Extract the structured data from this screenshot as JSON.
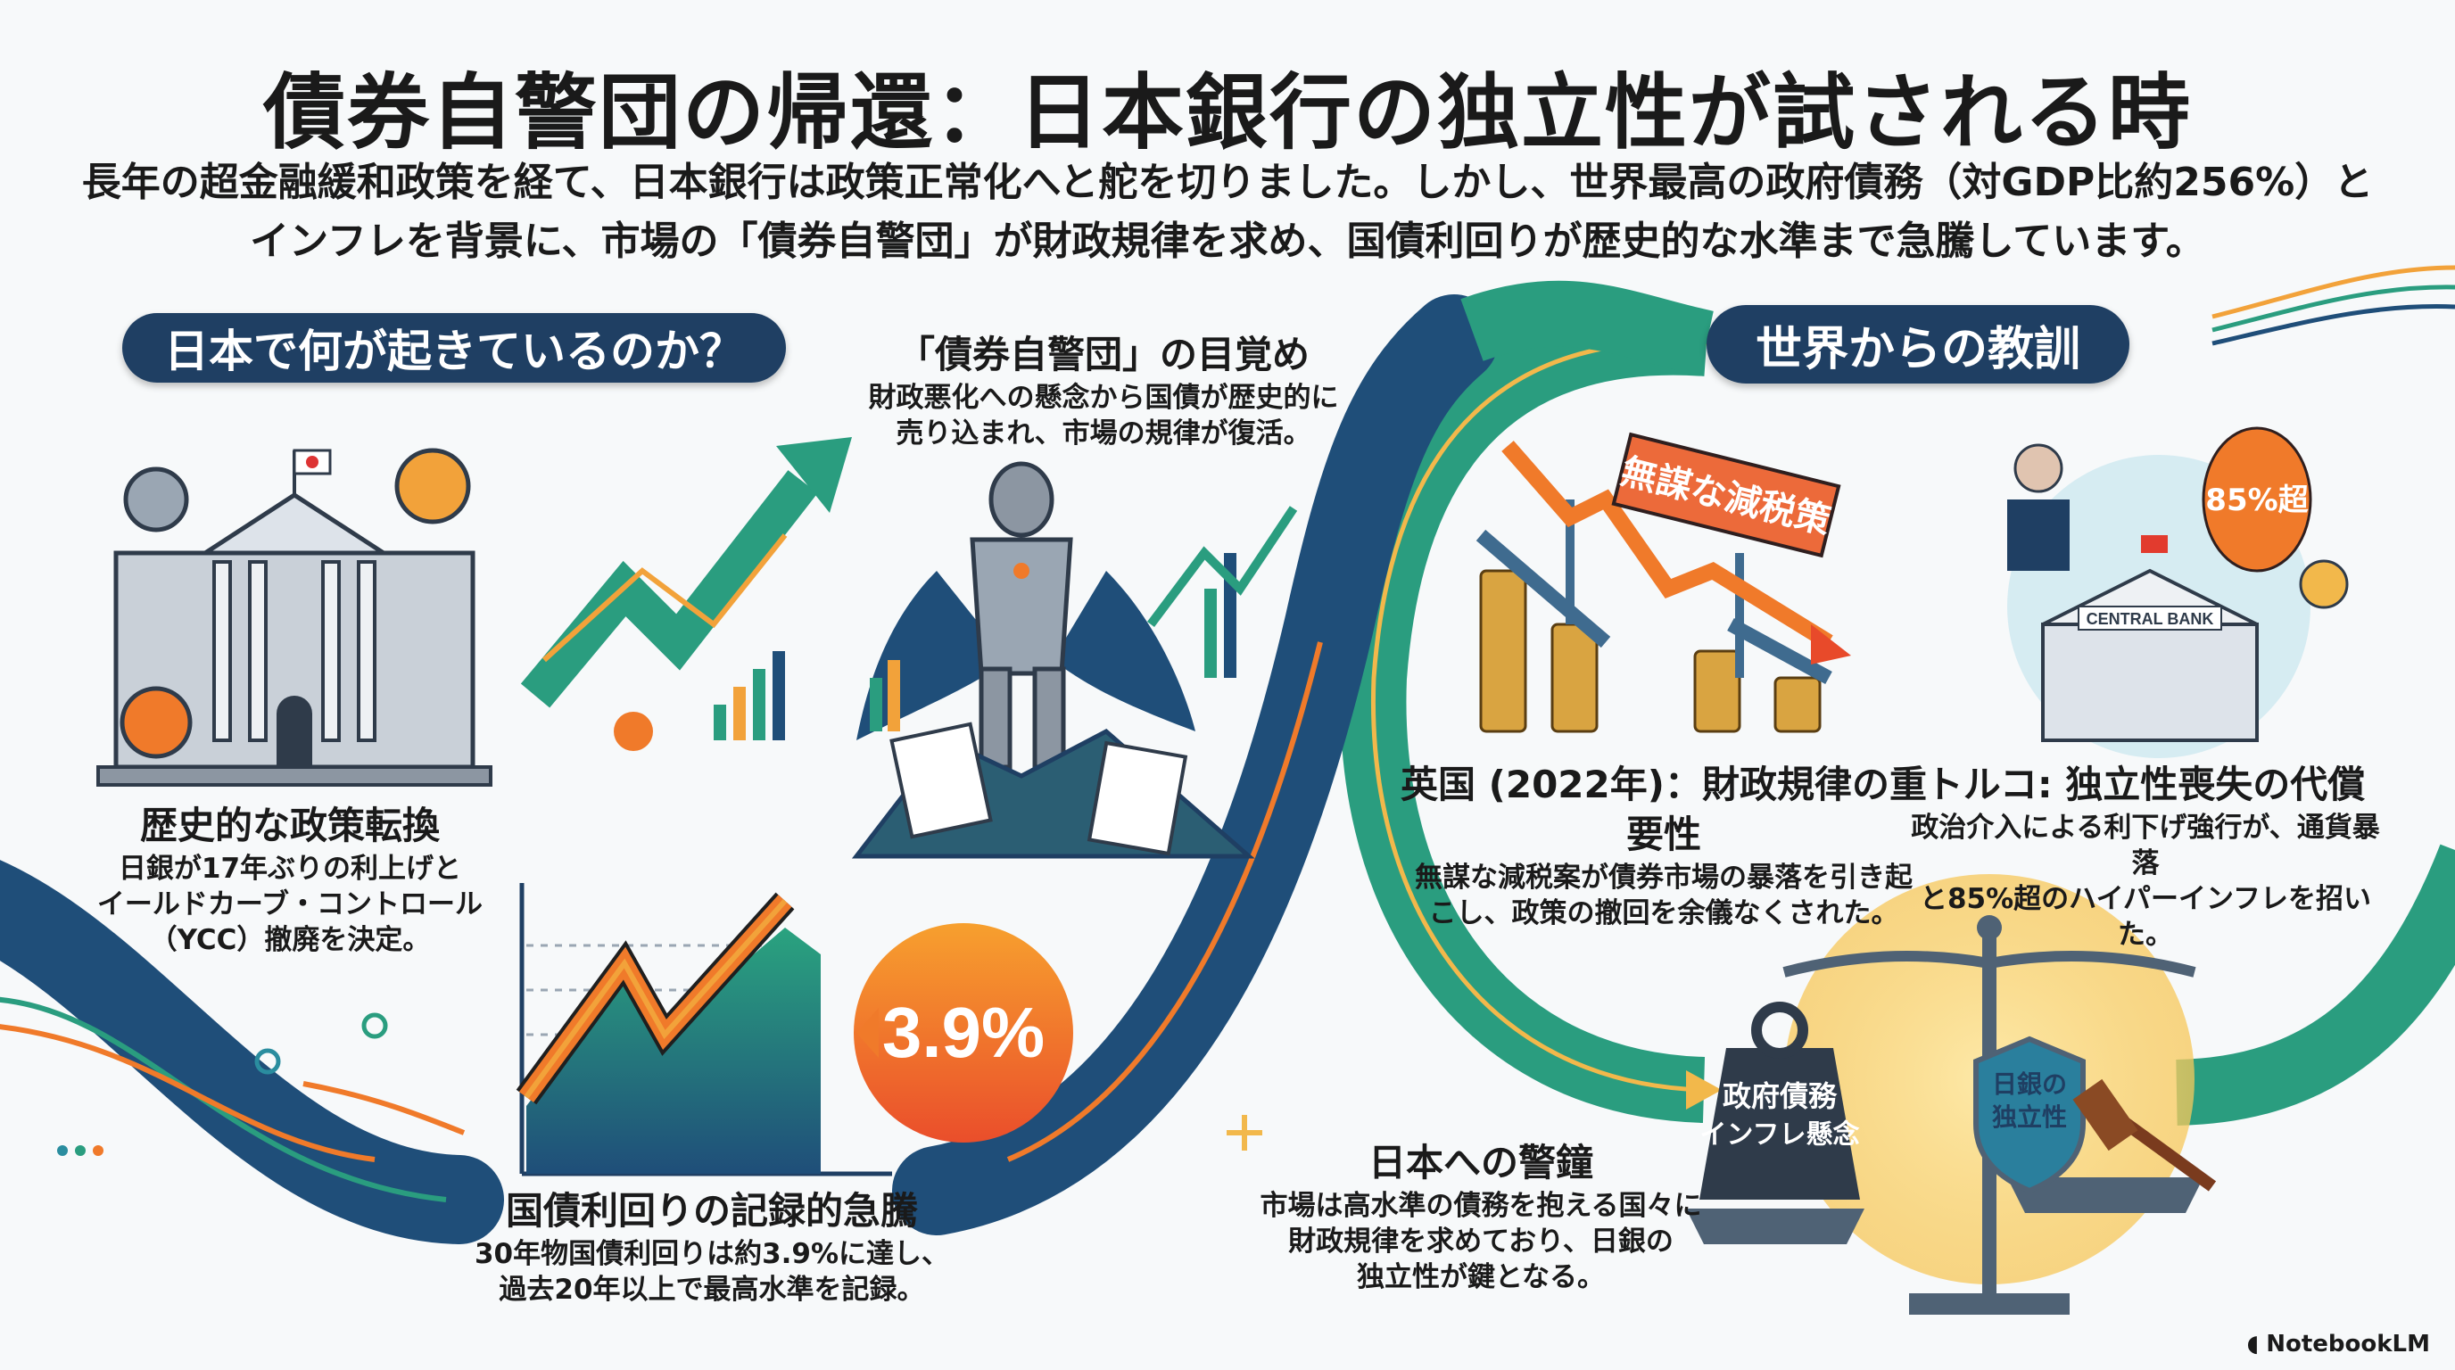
{
  "header": {
    "title": "債券自警団の帰還：日本銀行の独立性が試される時",
    "subtitle_lines": [
      "長年の超金融緩和政策を経て、日本銀行は政策正常化へと舵を切りました。しかし、世界最高の政府債務（対GDP比約256%）と",
      "インフレを背景に、市場の「債券自警団」が財政規律を求め、国債利回りが歴史的な水準まで急騰しています。"
    ]
  },
  "sections": {
    "japan_pill": "日本で何が起きているのか？",
    "world_pill": "世界からの教訓"
  },
  "japan": {
    "policy_shift": {
      "heading": "歴史的な政策転換",
      "body": [
        "日銀が17年ぶりの利上げと",
        "イールドカーブ・コントロール",
        "（YCC）撤廃を決定。"
      ]
    },
    "vigilantes": {
      "heading": "「債券自警団」の目覚め",
      "body": [
        "財政悪化への懸念から国債が歴史的に",
        "売り込まれ、市場の規律が復活。"
      ]
    },
    "yield_surge": {
      "heading": "国債利回りの記録的急騰",
      "body": [
        "30年物国債利回りは約3.9%に達し、",
        "過去20年以上で最高水準を記録。"
      ],
      "badge": "3.9%"
    }
  },
  "world": {
    "uk": {
      "heading": "英国 (2022年)：財政規律の重要性",
      "body": [
        "無謀な減税案が債券市場の暴落を引き起",
        "こし、政策の撤回を余儀なくされた。"
      ],
      "banner": "無謀な減税策"
    },
    "turkey": {
      "heading": "トルコ: 独立性喪失の代償",
      "body": [
        "政治介入による利下げ強行が、通貨暴落",
        "と85%超のハイパーインフレを招いた。"
      ],
      "balloon": "85%超",
      "building_sign": "CENTRAL BANK"
    },
    "warning": {
      "heading": "日本への警鐘",
      "body": [
        "市場は高水準の債務を抱える国々に",
        "財政規律を求めており、日銀の",
        "独立性が鍵となる。"
      ],
      "weight_label": [
        "政府債務",
        "インフレ懸念"
      ],
      "shield_label": [
        "日銀の",
        "独立性"
      ]
    }
  },
  "footer": {
    "brand": "NotebookLM"
  },
  "colors": {
    "navy": "#1f4e79",
    "green": "#2a9d7f",
    "orange": "#f07a2a",
    "gold": "#f2b84b",
    "pill": "#1f3f63"
  }
}
